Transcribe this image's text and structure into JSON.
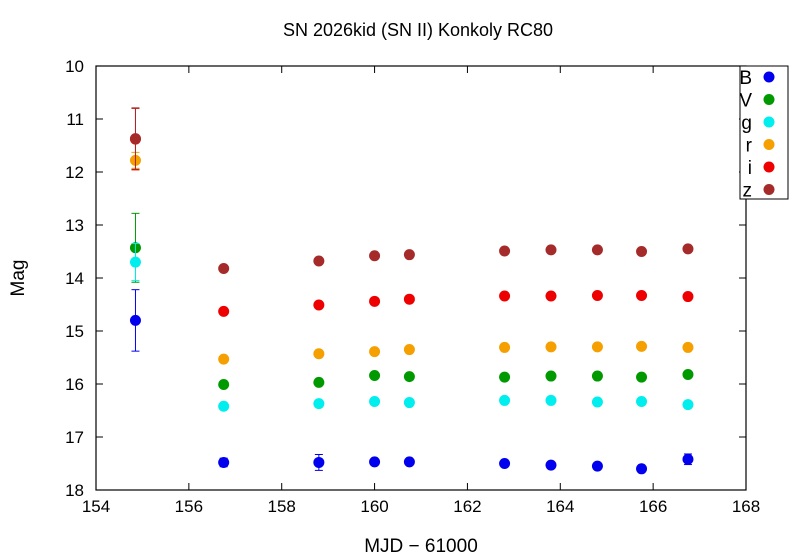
{
  "chart_data": {
    "type": "scatter",
    "title": "SN 2026kid (SN II) Konkoly RC80",
    "xlabel": "MJD − 61000",
    "ylabel": "Mag",
    "xlim": [
      154,
      168
    ],
    "ylim": [
      10,
      18
    ],
    "y_inverted": true,
    "x_ticks": [
      154,
      156,
      158,
      160,
      162,
      164,
      166,
      168
    ],
    "y_ticks": [
      10,
      11,
      12,
      13,
      14,
      15,
      16,
      17,
      18
    ],
    "grid": false,
    "legend_position": "top-right",
    "series": [
      {
        "name": "B",
        "color": "#0000ee",
        "points": [
          {
            "x": 154.85,
            "y": 14.8,
            "err": 0.58
          },
          {
            "x": 156.75,
            "y": 17.48,
            "err": 0.08
          },
          {
            "x": 158.8,
            "y": 17.48,
            "err": 0.15
          },
          {
            "x": 160.0,
            "y": 17.47,
            "err": 0.05
          },
          {
            "x": 160.75,
            "y": 17.47,
            "err": 0.05
          },
          {
            "x": 162.8,
            "y": 17.5,
            "err": 0.05
          },
          {
            "x": 163.8,
            "y": 17.53,
            "err": 0.05
          },
          {
            "x": 164.8,
            "y": 17.55,
            "err": 0.05
          },
          {
            "x": 165.75,
            "y": 17.6,
            "err": 0.05
          },
          {
            "x": 166.75,
            "y": 17.42,
            "err": 0.1
          }
        ]
      },
      {
        "name": "V",
        "color": "#009900",
        "points": [
          {
            "x": 154.85,
            "y": 13.43,
            "err": 0.65
          },
          {
            "x": 156.75,
            "y": 16.01,
            "err": 0.04
          },
          {
            "x": 158.8,
            "y": 15.97,
            "err": 0.04
          },
          {
            "x": 160.0,
            "y": 15.84,
            "err": 0.04
          },
          {
            "x": 160.75,
            "y": 15.86,
            "err": 0.04
          },
          {
            "x": 162.8,
            "y": 15.87,
            "err": 0.04
          },
          {
            "x": 163.8,
            "y": 15.85,
            "err": 0.04
          },
          {
            "x": 164.8,
            "y": 15.85,
            "err": 0.04
          },
          {
            "x": 165.75,
            "y": 15.87,
            "err": 0.04
          },
          {
            "x": 166.75,
            "y": 15.82,
            "err": 0.04
          }
        ]
      },
      {
        "name": "g",
        "color": "#00eeee",
        "points": [
          {
            "x": 154.85,
            "y": 13.7,
            "err": 0.35
          },
          {
            "x": 156.75,
            "y": 16.42,
            "err": 0.04
          },
          {
            "x": 158.8,
            "y": 16.37,
            "err": 0.04
          },
          {
            "x": 160.0,
            "y": 16.33,
            "err": 0.04
          },
          {
            "x": 160.75,
            "y": 16.35,
            "err": 0.04
          },
          {
            "x": 162.8,
            "y": 16.31,
            "err": 0.04
          },
          {
            "x": 163.8,
            "y": 16.31,
            "err": 0.04
          },
          {
            "x": 164.8,
            "y": 16.34,
            "err": 0.04
          },
          {
            "x": 165.75,
            "y": 16.33,
            "err": 0.04
          },
          {
            "x": 166.75,
            "y": 16.39,
            "err": 0.04
          }
        ]
      },
      {
        "name": "r",
        "color": "#f5a000",
        "points": [
          {
            "x": 154.85,
            "y": 11.78,
            "err": 0.15
          },
          {
            "x": 156.75,
            "y": 15.53,
            "err": 0.04
          },
          {
            "x": 158.8,
            "y": 15.43,
            "err": 0.04
          },
          {
            "x": 160.0,
            "y": 15.39,
            "err": 0.04
          },
          {
            "x": 160.75,
            "y": 15.35,
            "err": 0.04
          },
          {
            "x": 162.8,
            "y": 15.31,
            "err": 0.04
          },
          {
            "x": 163.8,
            "y": 15.3,
            "err": 0.04
          },
          {
            "x": 164.8,
            "y": 15.3,
            "err": 0.04
          },
          {
            "x": 165.75,
            "y": 15.29,
            "err": 0.04
          },
          {
            "x": 166.75,
            "y": 15.31,
            "err": 0.04
          }
        ]
      },
      {
        "name": "i",
        "color": "#ee0000",
        "points": [
          {
            "x": 154.85,
            "y": 11.38,
            "err": 0.58
          },
          {
            "x": 156.75,
            "y": 14.63,
            "err": 0.04
          },
          {
            "x": 158.8,
            "y": 14.51,
            "err": 0.04
          },
          {
            "x": 160.0,
            "y": 14.44,
            "err": 0.04
          },
          {
            "x": 160.75,
            "y": 14.4,
            "err": 0.04
          },
          {
            "x": 162.8,
            "y": 14.34,
            "err": 0.04
          },
          {
            "x": 163.8,
            "y": 14.34,
            "err": 0.04
          },
          {
            "x": 164.8,
            "y": 14.33,
            "err": 0.04
          },
          {
            "x": 165.75,
            "y": 14.33,
            "err": 0.04
          },
          {
            "x": 166.75,
            "y": 14.35,
            "err": 0.04
          }
        ]
      },
      {
        "name": "z",
        "color": "#a52a2a",
        "points": [
          {
            "x": 154.85,
            "y": 11.37,
            "err": 0.58
          },
          {
            "x": 156.75,
            "y": 13.82,
            "err": 0.04
          },
          {
            "x": 158.8,
            "y": 13.68,
            "err": 0.04
          },
          {
            "x": 160.0,
            "y": 13.58,
            "err": 0.04
          },
          {
            "x": 160.75,
            "y": 13.56,
            "err": 0.04
          },
          {
            "x": 162.8,
            "y": 13.49,
            "err": 0.04
          },
          {
            "x": 163.8,
            "y": 13.47,
            "err": 0.04
          },
          {
            "x": 164.8,
            "y": 13.47,
            "err": 0.04
          },
          {
            "x": 165.75,
            "y": 13.5,
            "err": 0.04
          },
          {
            "x": 166.75,
            "y": 13.45,
            "err": 0.04
          }
        ]
      }
    ]
  }
}
